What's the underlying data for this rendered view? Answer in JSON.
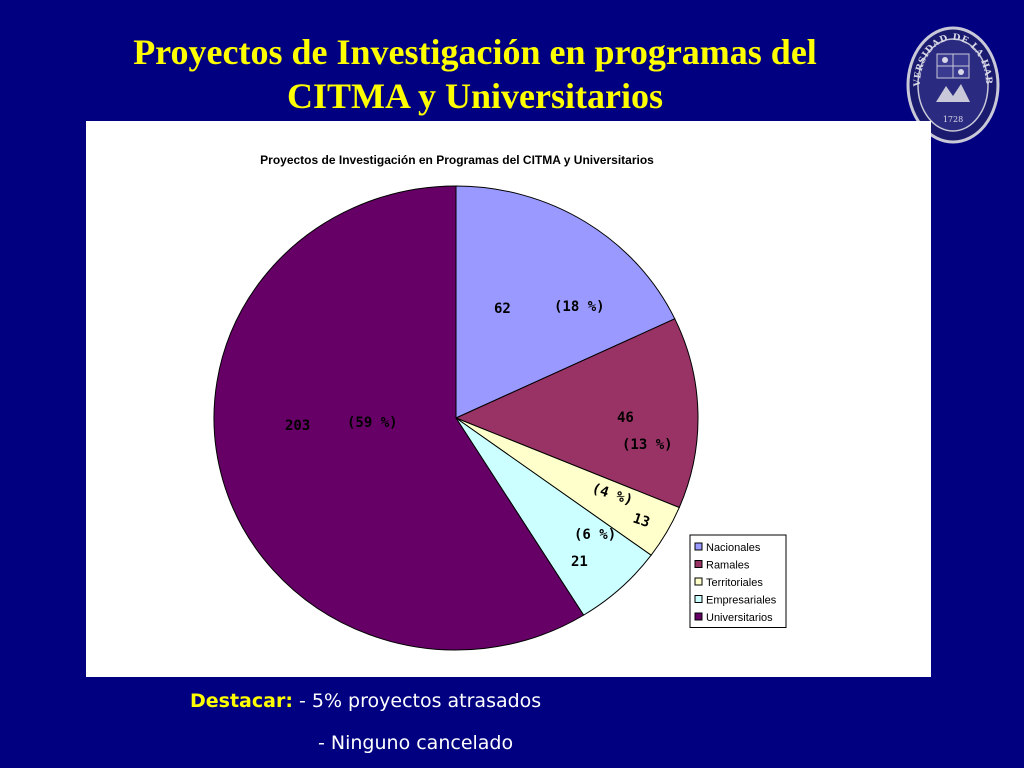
{
  "slide": {
    "title_line1": "Proyectos de Investigación en programas del",
    "title_line2": "CITMA y Universitarios"
  },
  "logo": {
    "text_top": "UNIVERSIDAD DE LA HABANA",
    "year": "1728"
  },
  "chart_data": {
    "type": "pie",
    "title": "Proyectos de Investigación en Programas del CITMA y Universitarios",
    "start_angle_deg": 0,
    "direction": "clockwise",
    "slices": [
      {
        "label": "Nacionales",
        "value": 62,
        "percent_label": "(18 %)",
        "color": "#9999ff"
      },
      {
        "label": "Ramales",
        "value": 46,
        "percent_label": "(13 %)",
        "color": "#993366"
      },
      {
        "label": "Territoriales",
        "value": 13,
        "percent_label": "(4 %)",
        "color": "#ffffcc"
      },
      {
        "label": "Empresariales",
        "value": 21,
        "percent_label": "(6 %)",
        "color": "#ccffff"
      },
      {
        "label": "Universitarios",
        "value": 203,
        "percent_label": "(59 %)",
        "color": "#660066"
      }
    ],
    "legend_position": "right",
    "grid": false
  },
  "footer": {
    "label": "Destacar:",
    "line1": " - 5% proyectos atrasados",
    "line2": "- Ninguno cancelado"
  },
  "colors": {
    "background": "#000080",
    "title": "#ffff00",
    "panel": "#ffffff",
    "footer_text": "#ffffff",
    "footer_label": "#ffff00"
  }
}
